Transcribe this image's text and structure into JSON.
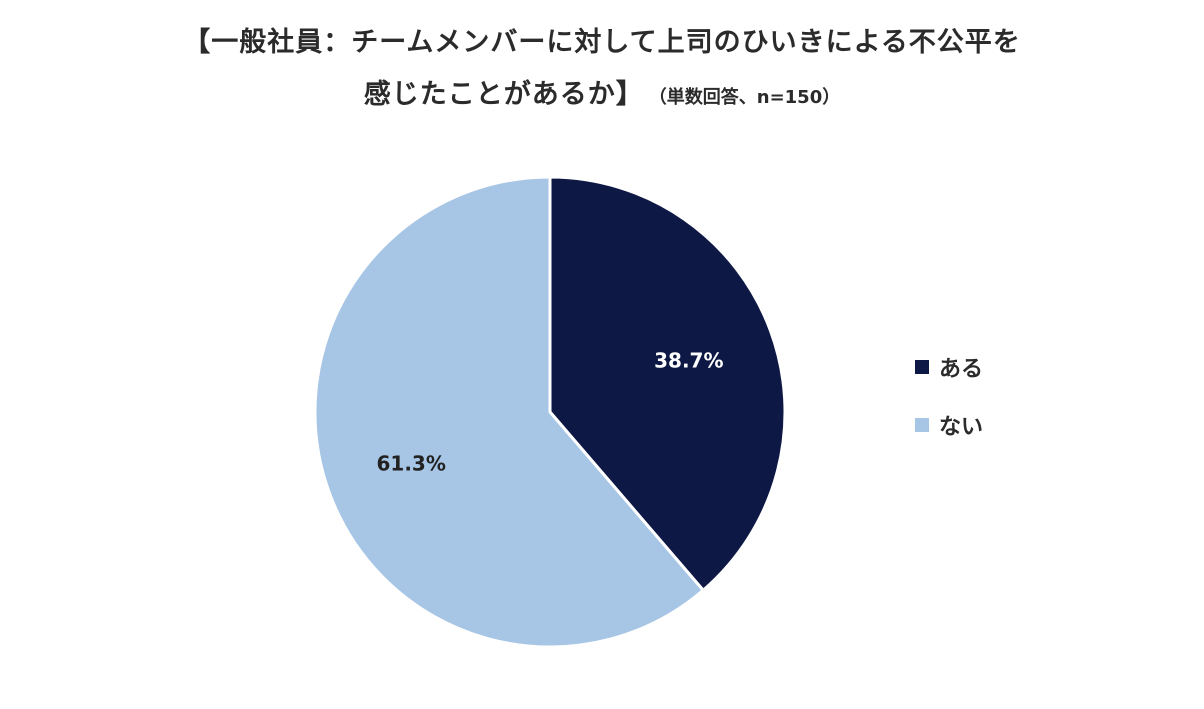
{
  "title": {
    "line1": "【一般社員：チームメンバーに対して上司のひいきによる不公平を",
    "line2": "感じたことがあるか】",
    "subtitle": "（単数回答、n=150）"
  },
  "colors": {
    "aru": "#0e1845",
    "nai": "#a7c5e5"
  },
  "chart_data": {
    "type": "pie",
    "title": "【一般社員：チームメンバーに対して上司のひいきによる不公平を感じたことがあるか】",
    "subtitle": "（単数回答、n=150）",
    "categories": [
      "ある",
      "ない"
    ],
    "values": [
      38.7,
      61.3
    ],
    "labels": [
      "38.7%",
      "61.3%"
    ],
    "legend": "right"
  }
}
